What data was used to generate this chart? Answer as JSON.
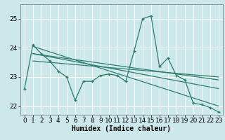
{
  "xlabel": "Humidex (Indice chaleur)",
  "bg_color": "#cce8eb",
  "grid_color": "#ffffff",
  "line_color": "#2e7d6e",
  "x_data": [
    0,
    1,
    2,
    3,
    4,
    5,
    6,
    7,
    8,
    9,
    10,
    11,
    12,
    13,
    14,
    15,
    16,
    17,
    18,
    19,
    20,
    21,
    22,
    23
  ],
  "main_line": [
    22.6,
    24.1,
    23.8,
    23.55,
    23.2,
    23.0,
    22.2,
    22.85,
    22.85,
    23.05,
    23.1,
    23.05,
    22.85,
    23.9,
    25.0,
    25.1,
    23.35,
    23.65,
    23.05,
    22.9,
    22.1,
    22.05,
    21.95,
    21.8
  ],
  "trend_lines": [
    {
      "x": [
        1,
        23
      ],
      "y": [
        24.05,
        22.0
      ]
    },
    {
      "x": [
        1,
        23
      ],
      "y": [
        23.8,
        22.9
      ]
    },
    {
      "x": [
        1,
        23
      ],
      "y": [
        23.55,
        23.0
      ]
    },
    {
      "x": [
        1,
        23
      ],
      "y": [
        23.8,
        22.6
      ]
    }
  ],
  "ylim": [
    21.7,
    25.5
  ],
  "xlim": [
    -0.5,
    23.5
  ],
  "yticks": [
    22,
    23,
    24,
    25
  ],
  "xticks": [
    0,
    1,
    2,
    3,
    4,
    5,
    6,
    7,
    8,
    9,
    10,
    11,
    12,
    13,
    14,
    15,
    16,
    17,
    18,
    19,
    20,
    21,
    22,
    23
  ],
  "fontsize": 6.5,
  "xlabel_fontsize": 7.0,
  "linewidth": 0.9,
  "marker": "+",
  "markersize": 3.5,
  "markeredgewidth": 1.0
}
